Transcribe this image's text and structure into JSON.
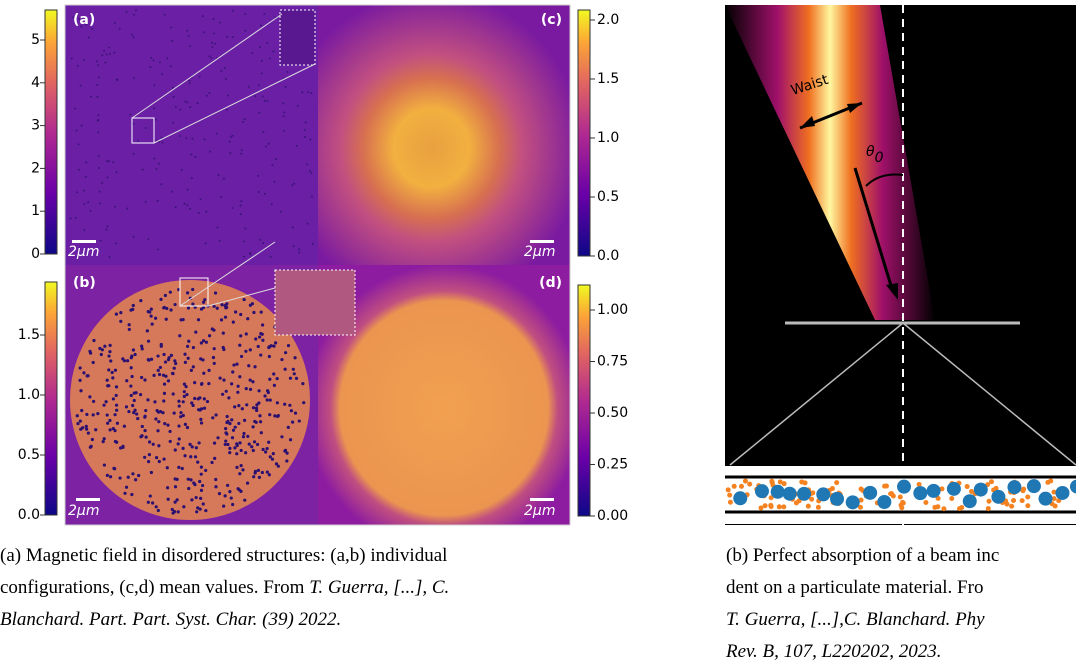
{
  "left_figure": {
    "panels": {
      "a": "(a)",
      "b": "(b)",
      "c": "(c)",
      "d": "(d)"
    },
    "scalebar": "2μm",
    "colorbars": {
      "top_left": [
        "0",
        "1",
        "2",
        "3",
        "4",
        "5"
      ],
      "bottom_left": [
        "0.0",
        "0.5",
        "1.0",
        "1.5"
      ],
      "top_right": [
        "0.0",
        "0.5",
        "1.0",
        "1.5",
        "2.0"
      ],
      "bottom_right": [
        "0.00",
        "0.25",
        "0.50",
        "0.75",
        "1.00"
      ]
    },
    "caption": [
      [
        {
          "text": "(a) Magnetic field in disordered structures: (a,b) individual"
        }
      ],
      [
        {
          "text": "configurations, (c,d) mean values. From "
        },
        {
          "text": "T. Guerra, [...], C.",
          "italic": true
        }
      ],
      [
        {
          "text": "Blanchard. Part. Part. Syst. Char. (39) 2022.",
          "italic": true
        }
      ]
    ]
  },
  "right_figure": {
    "waist": "Waist",
    "theta": "θ",
    "theta_sub": "0",
    "caption": [
      [
        {
          "text": "(b) Perfect absorption of a beam inc"
        }
      ],
      [
        {
          "text": "dent on a particulate material. Fro"
        }
      ],
      [
        {
          "text": "T. Guerra, [...],C. Blanchard. Phy",
          "italic": true
        }
      ],
      [
        {
          "text": "Rev. B, 107, L220202, 2023.",
          "italic": true
        }
      ]
    ]
  }
}
